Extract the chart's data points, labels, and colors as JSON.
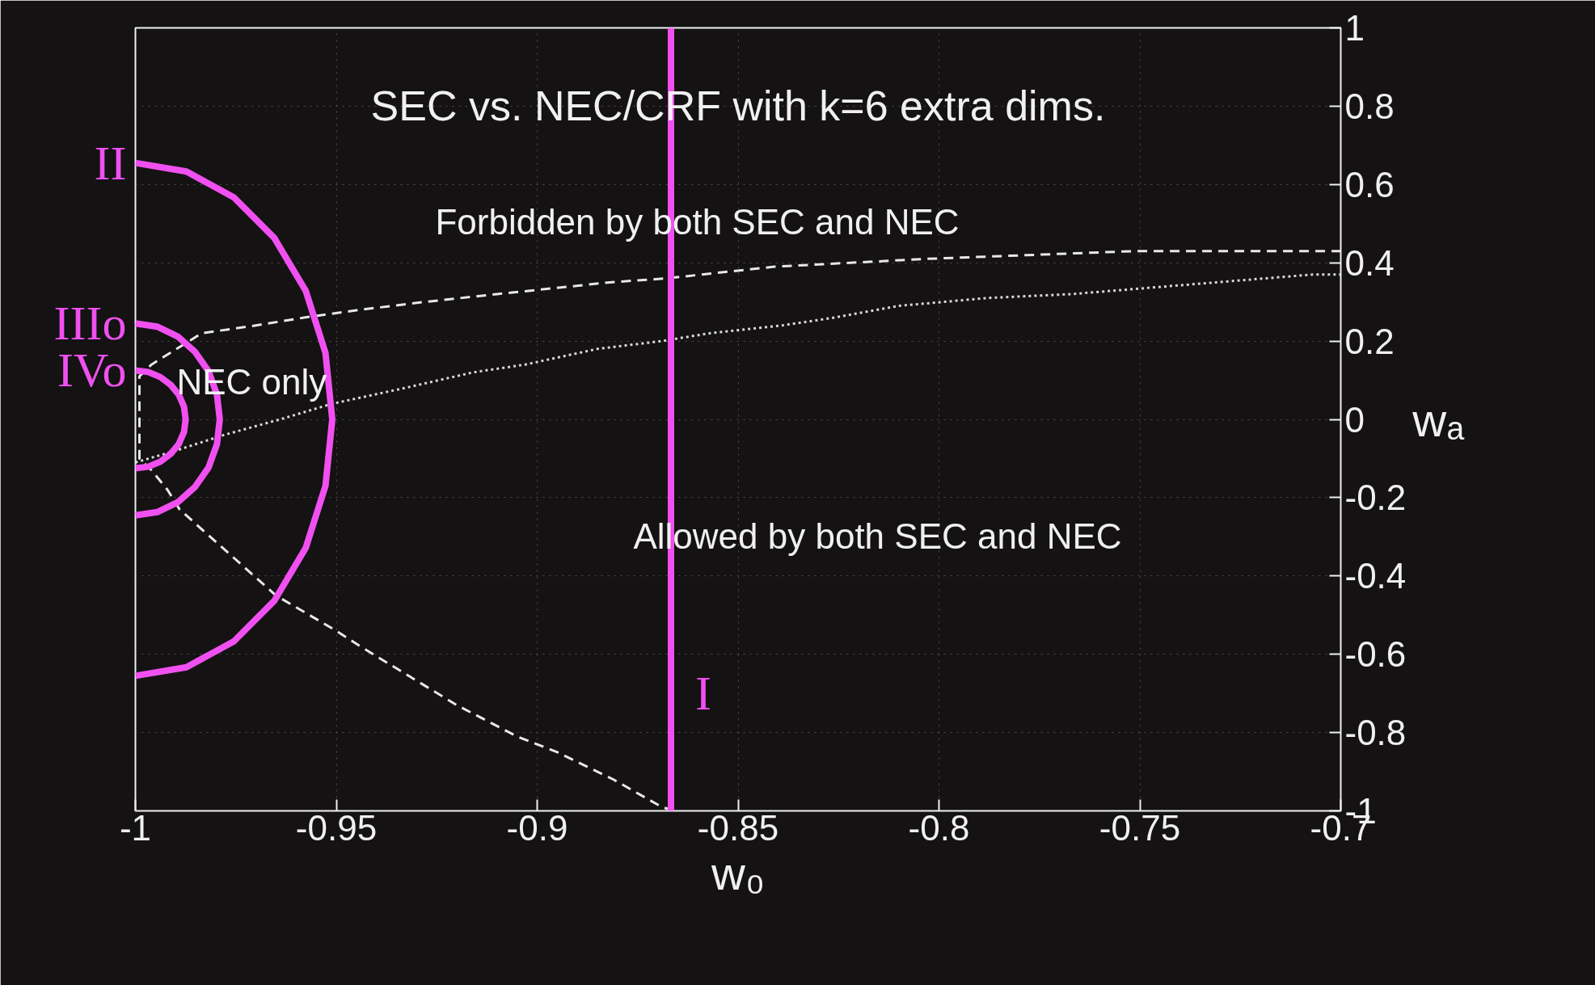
{
  "chart_data": {
    "type": "line",
    "title": "SEC vs. NEC/CRF with k=6 extra dims.",
    "xlabel": "w₀",
    "ylabel": "wₐ",
    "xlim": [
      -1,
      -0.7
    ],
    "ylim": [
      -1,
      1
    ],
    "xticks": [
      -1,
      -0.95,
      -0.9,
      -0.85,
      -0.8,
      -0.75,
      -0.7
    ],
    "yticks": [
      -1,
      -0.8,
      -0.6,
      -0.4,
      -0.2,
      0,
      0.2,
      0.4,
      0.6,
      0.8,
      1
    ],
    "grid": true,
    "legend": false,
    "series": [
      {
        "color": "#e8e8e8",
        "line_style": "dashed",
        "x": [
          -0.866,
          -0.869,
          -0.881,
          -0.895,
          -0.905,
          -0.92,
          -0.944,
          -0.95,
          -0.965,
          -0.989,
          -0.992,
          -0.996,
          -0.999,
          -0.999,
          -0.996,
          -0.9835,
          -0.97,
          -0.958,
          -0.944,
          -0.928,
          -0.91,
          -0.882,
          -0.868,
          -0.841,
          -0.803,
          -0.751,
          -0.7
        ],
        "values": [
          -1,
          -0.99,
          -0.92,
          -0.85,
          -0.81,
          -0.73,
          -0.58,
          -0.54,
          -0.45,
          -0.23,
          -0.18,
          -0.13,
          -0.1,
          0.11,
          0.14,
          0.22,
          0.24,
          0.26,
          0.28,
          0.3,
          0.32,
          0.35,
          0.36,
          0.39,
          0.41,
          0.43,
          0.43
        ]
      },
      {
        "color": "#d8d8d8",
        "line_style": "dotted",
        "x": [
          -1,
          -0.99,
          -0.978,
          -0.964,
          -0.951,
          -0.933,
          -0.916,
          -0.903,
          -0.885,
          -0.869,
          -0.857,
          -0.839,
          -0.826,
          -0.81,
          -0.788,
          -0.767,
          -0.731,
          -0.707,
          -0.7
        ],
        "values": [
          -0.11,
          -0.08,
          -0.04,
          0,
          0.04,
          0.08,
          0.12,
          0.14,
          0.18,
          0.2,
          0.22,
          0.24,
          0.26,
          0.29,
          0.31,
          0.32,
          0.35,
          0.37,
          0.37
        ]
      },
      {
        "name": "II",
        "color": "#f050f0",
        "line_style": "solid",
        "x": [
          -1,
          -0.9873,
          -0.9755,
          -0.9654,
          -0.9576,
          -0.9527,
          -0.951,
          -0.9527,
          -0.9576,
          -0.9654,
          -0.9755,
          -0.9873,
          -1
        ],
        "values": [
          0.655,
          0.633,
          0.567,
          0.463,
          0.328,
          0.17,
          0,
          -0.17,
          -0.328,
          -0.463,
          -0.567,
          -0.633,
          -0.655
        ]
      },
      {
        "name": "IIIo",
        "color": "#f050f0",
        "line_style": "solid",
        "x": [
          -1,
          -0.9946,
          -0.9895,
          -0.9852,
          -0.9818,
          -0.9797,
          -0.979,
          -0.9797,
          -0.9818,
          -0.9852,
          -0.9895,
          -0.9946,
          -1
        ],
        "values": [
          0.245,
          0.237,
          0.212,
          0.173,
          0.123,
          0.063,
          0,
          -0.063,
          -0.123,
          -0.173,
          -0.212,
          -0.237,
          -0.245
        ]
      },
      {
        "name": "IVo",
        "color": "#f050f0",
        "line_style": "solid",
        "x": [
          -1,
          -0.9968,
          -0.9938,
          -0.9912,
          -0.9892,
          -0.9879,
          -0.9875,
          -0.9879,
          -0.9892,
          -0.9912,
          -0.9938,
          -0.9968,
          -1
        ],
        "values": [
          0.125,
          0.121,
          0.108,
          0.088,
          0.063,
          0.032,
          0,
          -0.032,
          -0.063,
          -0.088,
          -0.108,
          -0.121,
          -0.125
        ]
      }
    ],
    "ref_lines": [
      {
        "axis": "x",
        "value": -0.8667,
        "label": "I",
        "color": "#f050f0"
      }
    ],
    "annotations": [
      "Forbidden by both SEC and NEC",
      "NEC only",
      "Allowed by both SEC and NEC"
    ]
  }
}
